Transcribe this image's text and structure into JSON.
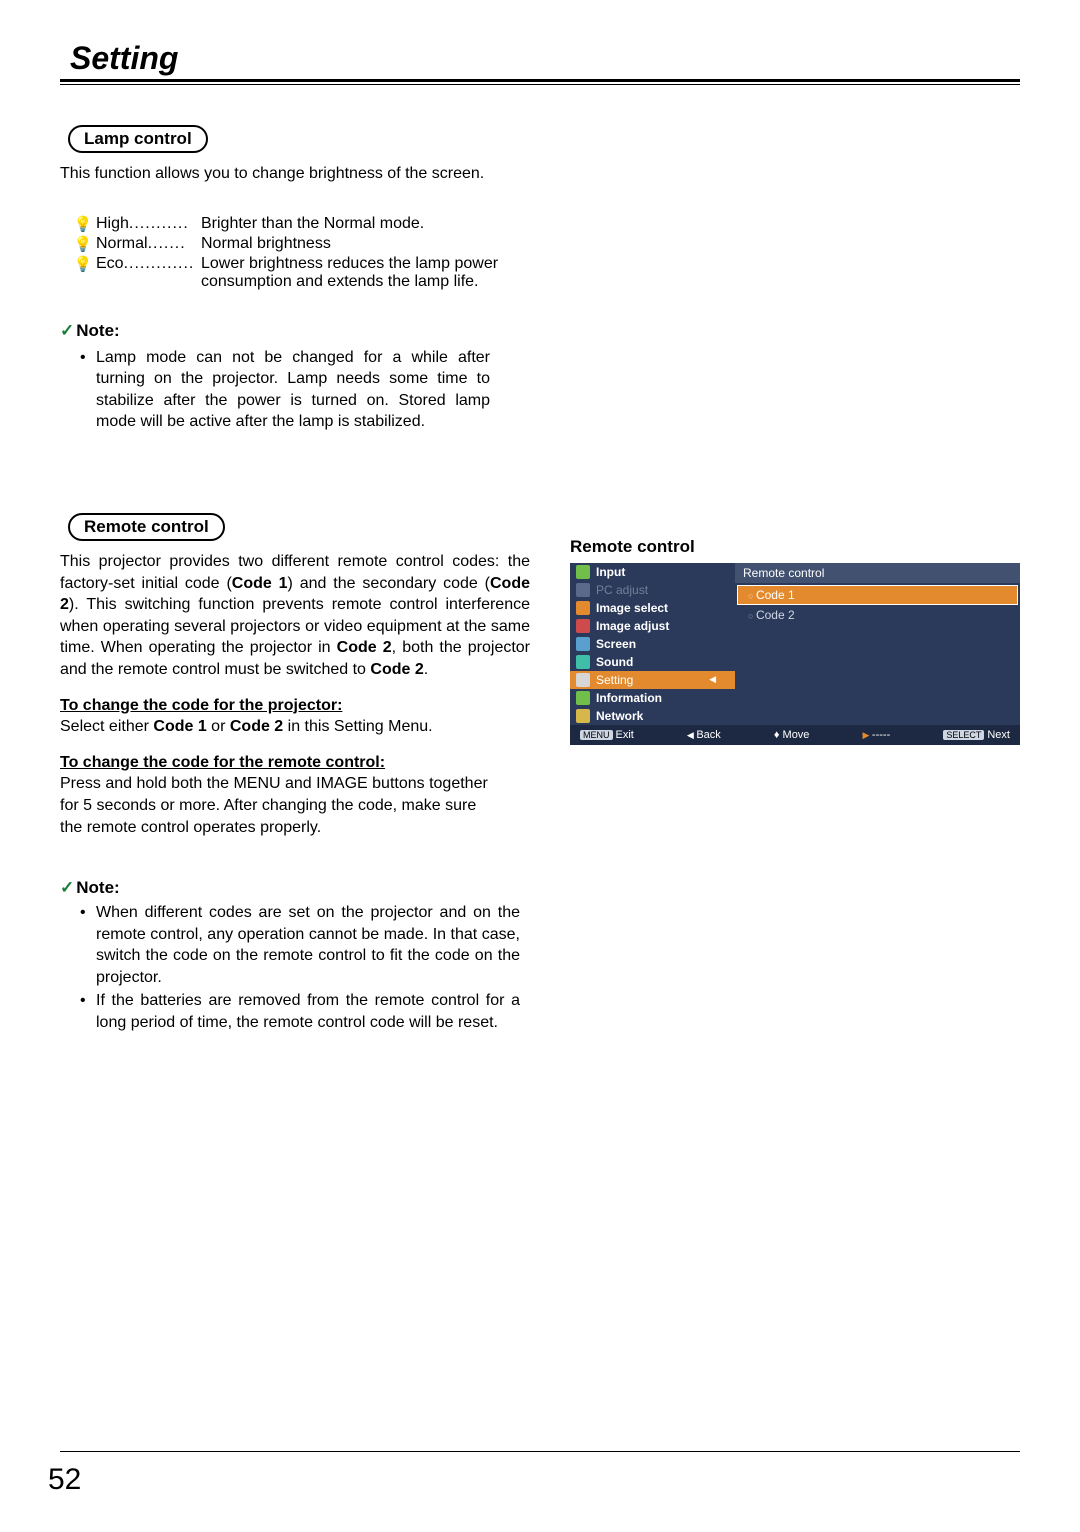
{
  "page_title": "Setting",
  "page_number": "52",
  "lamp": {
    "pill": "Lamp control",
    "intro": "This function allows you to change brightness of the screen.",
    "rows": [
      {
        "icon": "💡",
        "icon_color": "#f0c040",
        "name": "High",
        "dots": "...........",
        "desc": "Brighter than the Normal mode."
      },
      {
        "icon": "💡",
        "icon_color": "#8fcf6a",
        "name": "Normal",
        "dots": ".......",
        "desc": "Normal brightness"
      },
      {
        "icon": "💡",
        "icon_color": "#8fcf6a",
        "name": "Eco",
        "dots": ".............",
        "desc": "Lower brightness reduces the lamp power consumption and extends the lamp life."
      }
    ],
    "note_title": "Note:",
    "note_text": "Lamp mode can not be changed for a while after turning on the projector. Lamp needs some time to stabilize after the power is turned on. Stored lamp mode will be active after the lamp is stabilized."
  },
  "remote": {
    "pill": "Remote control",
    "para_pre": "This projector provides two different remote control codes: the factory-set initial code (",
    "code1": "Code 1",
    "para_mid1": ") and the secondary code (",
    "code2": "Code 2",
    "para_mid2": "). This switching function prevents remote control interference when operating several projectors or video equipment at the same time. When operating the projector in ",
    "para_mid3": ", both the projector and the remote control must be switched to ",
    "para_end": ".",
    "proj_head": "To change the code for the projector:",
    "proj_pre": "Select either ",
    "proj_or": " or ",
    "proj_post": " in this Setting Menu.",
    "rc_head": "To change the code for the remote control:",
    "rc_text": "Press and hold both the MENU and IMAGE buttons together for 5 seconds or more.  After changing the code, make sure the  remote control operates properly.",
    "note_title": "Note:",
    "note1": "When different codes are set on the projector and on the remote control, any operation cannot be made. In that case, switch the code on the remote control to fit the code on the projector.",
    "note2": "If the batteries are removed from the remote control for a long period of time, the remote control code will be reset."
  },
  "osd": {
    "title": "Remote control",
    "panel_title": "Remote control",
    "left": [
      {
        "label": "Input",
        "icon_bg": "#6fbf4a",
        "bold": true
      },
      {
        "label": "PC adjust",
        "icon_bg": "#5a6a8a",
        "dim": true
      },
      {
        "label": "Image select",
        "icon_bg": "#e38a2e",
        "bold": true
      },
      {
        "label": "Image adjust",
        "icon_bg": "#cf4a4a",
        "bold": true
      },
      {
        "label": "Screen",
        "icon_bg": "#5aa0cf",
        "bold": true
      },
      {
        "label": "Sound",
        "icon_bg": "#3fbfa8",
        "bold": true
      },
      {
        "label": "Setting",
        "icon_bg": "#d6d6d6",
        "active": true,
        "bold": true
      },
      {
        "label": "Information",
        "icon_bg": "#6fbf4a",
        "bold": true
      },
      {
        "label": "Network",
        "icon_bg": "#d6b84a",
        "bold": true
      }
    ],
    "codes": [
      {
        "label": "Code 1",
        "selected": true
      },
      {
        "label": "Code 2",
        "selected": false
      }
    ],
    "footer": {
      "exit_btn": "MENU",
      "exit": "Exit",
      "back": "Back",
      "move": "Move",
      "dash": "-----",
      "next_btn": "SELECT",
      "next": "Next"
    }
  }
}
